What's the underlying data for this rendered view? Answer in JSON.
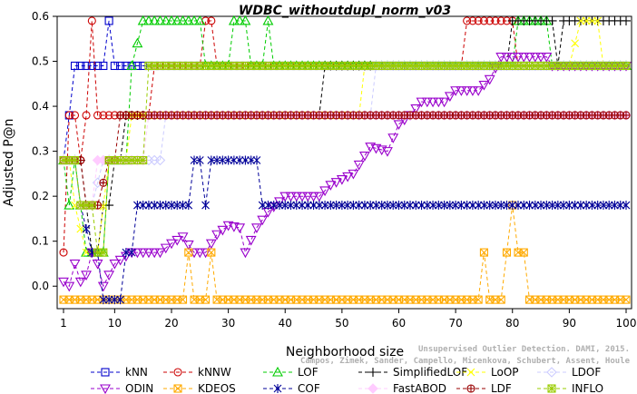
{
  "colors": {
    "kNN": "#0000cc",
    "kNNW": "#cc0000",
    "LOF": "#00cc00",
    "SimplifiedLOF": "#000000",
    "LoOP": "#ffff00",
    "LDOF": "#ccccff",
    "ODIN": "#9900cc",
    "KDEOS": "#ffaa00",
    "COF": "#000099",
    "FastABOD": "#ffccff",
    "LDF": "#990000",
    "INFLO": "#99cc00"
  },
  "credit": {
    "line1": "Unsupervised Outlier Detection. DAMI, 2015.",
    "line2": "Campos, Zimek, Sander, Campello, Micenkova, Schubert, Assent, Houle"
  },
  "chart_data": {
    "type": "line",
    "title": "WDBC_withoutdupl_norm_v03",
    "xlabel": "Neighborhood size",
    "ylabel": "Adjusted P@n",
    "xlim": [
      1,
      100
    ],
    "ylim": [
      -0.05,
      0.6
    ],
    "x_ticks": [
      1,
      10,
      20,
      30,
      40,
      50,
      60,
      70,
      80,
      90,
      100
    ],
    "y_ticks": [
      0.0,
      0.1,
      0.2,
      0.3,
      0.4,
      0.5,
      0.6
    ],
    "x_tick_labels": [
      "1",
      "10",
      "20",
      "30",
      "40",
      "50",
      "60",
      "70",
      "80",
      "90",
      "100"
    ],
    "y_tick_labels": [
      "0.0",
      "0.1",
      "0.2",
      "0.3",
      "0.4",
      "0.5",
      "0.6"
    ],
    "legend_position": "bottom",
    "series": [
      {
        "name": "kNN",
        "marker": "square",
        "points": [
          [
            1,
            0.28
          ],
          [
            2,
            0.38
          ],
          [
            3,
            0.49
          ],
          [
            8,
            0.49
          ],
          [
            9,
            0.59
          ],
          [
            10,
            0.49
          ],
          [
            100,
            0.49
          ]
        ]
      },
      {
        "name": "kNNW",
        "marker": "circle",
        "points": [
          [
            1,
            0.075
          ],
          [
            2,
            0.38
          ],
          [
            3,
            0.38
          ],
          [
            4,
            0.28
          ],
          [
            5,
            0.38
          ],
          [
            6,
            0.59
          ],
          [
            7,
            0.38
          ],
          [
            16,
            0.38
          ],
          [
            17,
            0.49
          ],
          [
            25,
            0.49
          ],
          [
            26,
            0.59
          ],
          [
            27,
            0.59
          ],
          [
            28,
            0.49
          ],
          [
            71,
            0.49
          ],
          [
            72,
            0.59
          ],
          [
            80,
            0.59
          ],
          [
            81,
            0.49
          ],
          [
            100,
            0.49
          ]
        ]
      },
      {
        "name": "LOF",
        "marker": "triangle-up",
        "points": [
          [
            1,
            0.28
          ],
          [
            2,
            0.18
          ],
          [
            3,
            0.28
          ],
          [
            4,
            0.18
          ],
          [
            5,
            0.075
          ],
          [
            8,
            0.075
          ],
          [
            9,
            0.28
          ],
          [
            12,
            0.28
          ],
          [
            13,
            0.49
          ],
          [
            15,
            0.59
          ],
          [
            25,
            0.59
          ],
          [
            26,
            0.49
          ],
          [
            30,
            0.49
          ],
          [
            31,
            0.59
          ],
          [
            33,
            0.59
          ],
          [
            34,
            0.49
          ],
          [
            36,
            0.49
          ],
          [
            37,
            0.59
          ],
          [
            38,
            0.49
          ],
          [
            80,
            0.49
          ],
          [
            81,
            0.59
          ],
          [
            86,
            0.59
          ],
          [
            87,
            0.49
          ],
          [
            100,
            0.49
          ]
        ]
      },
      {
        "name": "SimplifiedLOF",
        "marker": "plus",
        "points": [
          [
            1,
            0.28
          ],
          [
            3,
            0.28
          ],
          [
            4,
            0.28
          ],
          [
            5,
            0.18
          ],
          [
            6,
            0.075
          ],
          [
            7,
            0.075
          ],
          [
            8,
            0.18
          ],
          [
            9,
            0.18
          ],
          [
            10,
            0.28
          ],
          [
            11,
            0.28
          ],
          [
            12,
            0.38
          ],
          [
            38,
            0.38
          ],
          [
            39,
            0.38
          ],
          [
            46,
            0.38
          ],
          [
            47,
            0.49
          ],
          [
            79,
            0.49
          ],
          [
            80,
            0.59
          ],
          [
            87,
            0.59
          ],
          [
            88,
            0.49
          ],
          [
            89,
            0.59
          ],
          [
            100,
            0.59
          ]
        ]
      },
      {
        "name": "LoOP",
        "marker": "x",
        "points": [
          [
            1,
            0.28
          ],
          [
            2,
            0.28
          ],
          [
            3,
            0.18
          ],
          [
            5,
            0.075
          ],
          [
            7,
            0.075
          ],
          [
            9,
            0.28
          ],
          [
            12,
            0.28
          ],
          [
            13,
            0.38
          ],
          [
            53,
            0.38
          ],
          [
            54,
            0.49
          ],
          [
            90,
            0.49
          ],
          [
            92,
            0.59
          ],
          [
            95,
            0.59
          ],
          [
            96,
            0.49
          ],
          [
            100,
            0.49
          ]
        ]
      },
      {
        "name": "LDOF",
        "marker": "diamond",
        "points": [
          [
            1,
            0.28
          ],
          [
            3,
            0.28
          ],
          [
            4,
            0.18
          ],
          [
            6,
            0.18
          ],
          [
            8,
            0.28
          ],
          [
            18,
            0.28
          ],
          [
            19,
            0.38
          ],
          [
            55,
            0.38
          ],
          [
            56,
            0.49
          ],
          [
            100,
            0.49
          ]
        ]
      },
      {
        "name": "ODIN",
        "marker": "triangle-down",
        "points": [
          [
            1,
            0.01
          ],
          [
            2,
            0.0
          ],
          [
            3,
            0.05
          ],
          [
            4,
            0.01
          ],
          [
            5,
            0.025
          ],
          [
            6,
            0.075
          ],
          [
            7,
            0.05
          ],
          [
            8,
            0.0
          ],
          [
            9,
            0.025
          ],
          [
            10,
            0.05
          ],
          [
            13,
            0.075
          ],
          [
            18,
            0.075
          ],
          [
            20,
            0.095
          ],
          [
            22,
            0.11
          ],
          [
            24,
            0.075
          ],
          [
            26,
            0.075
          ],
          [
            28,
            0.115
          ],
          [
            30,
            0.135
          ],
          [
            32,
            0.13
          ],
          [
            33,
            0.075
          ],
          [
            35,
            0.13
          ],
          [
            37,
            0.165
          ],
          [
            40,
            0.2
          ],
          [
            46,
            0.2
          ],
          [
            48,
            0.225
          ],
          [
            52,
            0.25
          ],
          [
            55,
            0.31
          ],
          [
            58,
            0.3
          ],
          [
            60,
            0.36
          ],
          [
            62,
            0.38
          ],
          [
            64,
            0.41
          ],
          [
            68,
            0.41
          ],
          [
            70,
            0.435
          ],
          [
            74,
            0.435
          ],
          [
            76,
            0.46
          ],
          [
            78,
            0.51
          ],
          [
            82,
            0.51
          ],
          [
            84,
            0.51
          ],
          [
            86,
            0.51
          ],
          [
            87,
            0.49
          ],
          [
            100,
            0.49
          ]
        ]
      },
      {
        "name": "KDEOS",
        "marker": "square-x",
        "points": [
          [
            1,
            -0.03
          ],
          [
            22,
            -0.03
          ],
          [
            23,
            0.075
          ],
          [
            24,
            -0.03
          ],
          [
            26,
            -0.03
          ],
          [
            27,
            0.075
          ],
          [
            28,
            -0.03
          ],
          [
            74,
            -0.03
          ],
          [
            75,
            0.075
          ],
          [
            76,
            -0.03
          ],
          [
            78,
            -0.03
          ],
          [
            79,
            0.075
          ],
          [
            80,
            0.18
          ],
          [
            81,
            0.075
          ],
          [
            82,
            0.075
          ],
          [
            83,
            -0.03
          ],
          [
            100,
            -0.03
          ]
        ]
      },
      {
        "name": "COF",
        "marker": "asterisk",
        "points": [
          [
            1,
            0.28
          ],
          [
            3,
            0.28
          ],
          [
            4,
            0.18
          ],
          [
            6,
            0.075
          ],
          [
            7,
            0.075
          ],
          [
            8,
            -0.03
          ],
          [
            11,
            -0.03
          ],
          [
            12,
            0.075
          ],
          [
            13,
            0.075
          ],
          [
            14,
            0.18
          ],
          [
            23,
            0.18
          ],
          [
            24,
            0.28
          ],
          [
            25,
            0.28
          ],
          [
            26,
            0.18
          ],
          [
            27,
            0.28
          ],
          [
            35,
            0.28
          ],
          [
            36,
            0.18
          ],
          [
            100,
            0.18
          ]
        ]
      },
      {
        "name": "FastABOD",
        "marker": "diamond-filled",
        "points": [
          [
            1,
            0.28
          ],
          [
            3,
            0.28
          ],
          [
            4,
            0.18
          ],
          [
            6,
            0.18
          ],
          [
            7,
            0.28
          ],
          [
            15,
            0.28
          ],
          [
            16,
            0.38
          ],
          [
            100,
            0.38
          ]
        ]
      },
      {
        "name": "LDF",
        "marker": "circle-plus",
        "points": [
          [
            1,
            0.28
          ],
          [
            3,
            0.28
          ],
          [
            4,
            0.28
          ],
          [
            5,
            0.18
          ],
          [
            7,
            0.18
          ],
          [
            9,
            0.28
          ],
          [
            10,
            0.28
          ],
          [
            11,
            0.38
          ],
          [
            100,
            0.38
          ]
        ]
      },
      {
        "name": "INFLO",
        "marker": "square-star",
        "points": [
          [
            1,
            0.28
          ],
          [
            3,
            0.28
          ],
          [
            4,
            0.18
          ],
          [
            6,
            0.18
          ],
          [
            7,
            0.075
          ],
          [
            8,
            0.075
          ],
          [
            9,
            0.28
          ],
          [
            15,
            0.28
          ],
          [
            16,
            0.49
          ],
          [
            100,
            0.49
          ]
        ]
      }
    ]
  }
}
